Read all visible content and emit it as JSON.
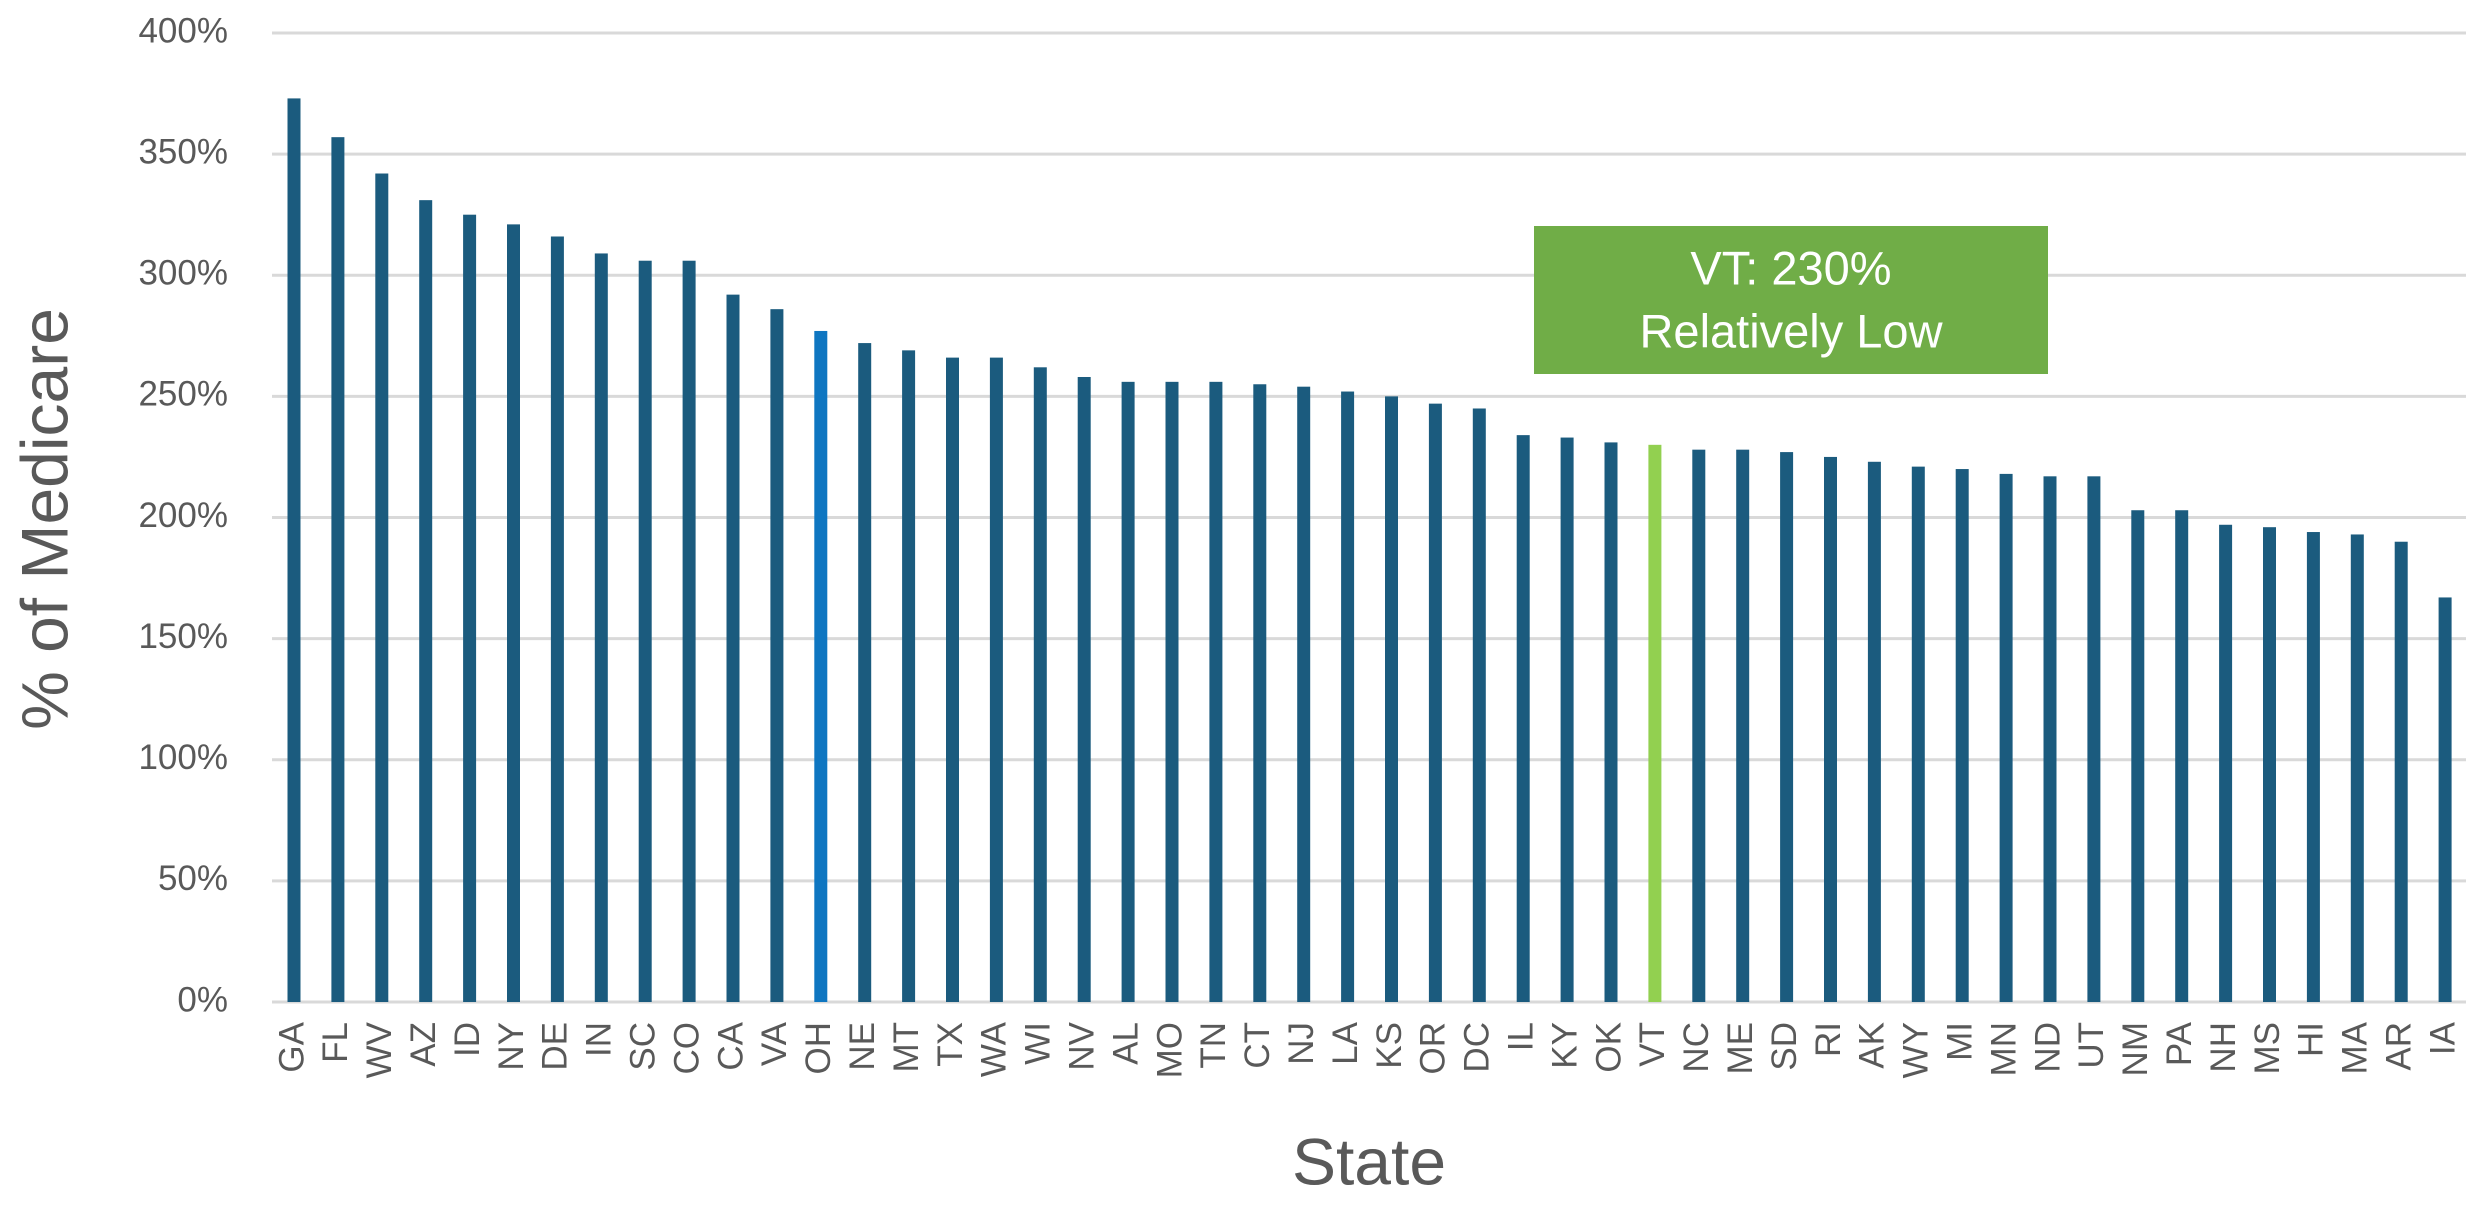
{
  "chart_data": {
    "type": "bar",
    "x_label": "State",
    "y_label": "% of Medicare",
    "categories": [
      "GA",
      "FL",
      "WV",
      "AZ",
      "ID",
      "NY",
      "DE",
      "IN",
      "SC",
      "CO",
      "CA",
      "VA",
      "OH",
      "NE",
      "MT",
      "TX",
      "WA",
      "WI",
      "NV",
      "AL",
      "MO",
      "TN",
      "CT",
      "NJ",
      "LA",
      "KS",
      "OR",
      "DC",
      "IL",
      "KY",
      "OK",
      "VT",
      "NC",
      "ME",
      "SD",
      "RI",
      "AK",
      "WY",
      "MI",
      "MN",
      "ND",
      "UT",
      "NM",
      "PA",
      "NH",
      "MS",
      "HI",
      "MA",
      "AR",
      "IA"
    ],
    "values": [
      373,
      357,
      342,
      331,
      325,
      321,
      316,
      309,
      306,
      306,
      292,
      286,
      277,
      272,
      269,
      266,
      266,
      262,
      258,
      256,
      256,
      256,
      255,
      254,
      252,
      250,
      247,
      245,
      234,
      233,
      231,
      230,
      228,
      228,
      227,
      225,
      223,
      221,
      220,
      218,
      217,
      217,
      203,
      203,
      197,
      196,
      194,
      193,
      190,
      167
    ],
    "colors": [
      "#1b5b7e",
      "#1b5b7e",
      "#1b5b7e",
      "#1b5b7e",
      "#1b5b7e",
      "#1b5b7e",
      "#1b5b7e",
      "#1b5b7e",
      "#1b5b7e",
      "#1b5b7e",
      "#1b5b7e",
      "#1b5b7e",
      "#0e76c1",
      "#1b5b7e",
      "#1b5b7e",
      "#1b5b7e",
      "#1b5b7e",
      "#1b5b7e",
      "#1b5b7e",
      "#1b5b7e",
      "#1b5b7e",
      "#1b5b7e",
      "#1b5b7e",
      "#1b5b7e",
      "#1b5b7e",
      "#1b5b7e",
      "#1b5b7e",
      "#1b5b7e",
      "#1b5b7e",
      "#1b5b7e",
      "#1b5b7e",
      "#92d050",
      "#1b5b7e",
      "#1b5b7e",
      "#1b5b7e",
      "#1b5b7e",
      "#1b5b7e",
      "#1b5b7e",
      "#1b5b7e",
      "#1b5b7e",
      "#1b5b7e",
      "#1b5b7e",
      "#1b5b7e",
      "#1b5b7e",
      "#1b5b7e",
      "#1b5b7e",
      "#1b5b7e",
      "#1b5b7e",
      "#1b5b7e",
      "#1b5b7e"
    ],
    "ylim": [
      0,
      400
    ],
    "yticks": [
      {
        "value": 0,
        "label": "0%"
      },
      {
        "value": 50,
        "label": "50%"
      },
      {
        "value": 100,
        "label": "100%"
      },
      {
        "value": 150,
        "label": "150%"
      },
      {
        "value": 200,
        "label": "200%"
      },
      {
        "value": 250,
        "label": "250%"
      },
      {
        "value": 300,
        "label": "300%"
      },
      {
        "value": 350,
        "label": "350%"
      },
      {
        "value": 400,
        "label": "400%"
      }
    ],
    "grid": true,
    "annotation": {
      "lines": [
        "VT:  230%",
        "Relatively Low"
      ],
      "color": "#70ad47"
    }
  }
}
